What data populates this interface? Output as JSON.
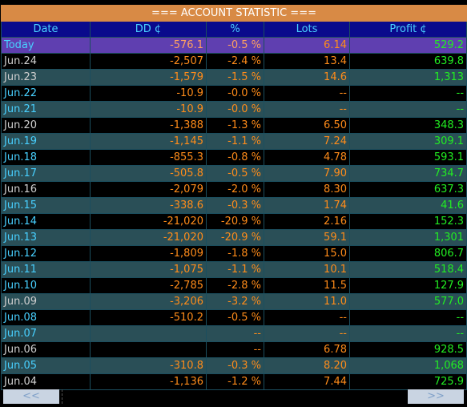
{
  "title": "=== ACCOUNT STATISTIC ===",
  "headers": {
    "date": "Date",
    "dd": "DD ¢",
    "pct": "%",
    "lots": "Lots",
    "profit": "Profit ¢"
  },
  "rows": [
    {
      "date": "Today",
      "dd": "-576.1",
      "pct": "-0.5 %",
      "lots": "6.14",
      "profit": "529.2",
      "style": "today"
    },
    {
      "date": "Jun.24",
      "dd": "-2,507",
      "pct": "-2.4 %",
      "lots": "13.4",
      "profit": "639.8",
      "style": "dark",
      "dateColor": "gray"
    },
    {
      "date": "Jun.23",
      "dd": "-1,579",
      "pct": "-1.5 %",
      "lots": "14.6",
      "profit": "1,313",
      "style": "teal",
      "dateColor": "gray"
    },
    {
      "date": "Jun.22",
      "dd": "-10.9",
      "pct": "-0.0 %",
      "lots": "--",
      "profit": "--",
      "style": "dark",
      "dateColor": "cyan"
    },
    {
      "date": "Jun.21",
      "dd": "-10.9",
      "pct": "-0.0 %",
      "lots": "--",
      "profit": "--",
      "style": "teal",
      "dateColor": "cyan"
    },
    {
      "date": "Jun.20",
      "dd": "-1,388",
      "pct": "-1.3 %",
      "lots": "6.50",
      "profit": "348.3",
      "style": "dark",
      "dateColor": "gray"
    },
    {
      "date": "Jun.19",
      "dd": "-1,145",
      "pct": "-1.1 %",
      "lots": "7.24",
      "profit": "309.1",
      "style": "teal",
      "dateColor": "cyan"
    },
    {
      "date": "Jun.18",
      "dd": "-855.3",
      "pct": "-0.8 %",
      "lots": "4.78",
      "profit": "593.1",
      "style": "dark",
      "dateColor": "cyan"
    },
    {
      "date": "Jun.17",
      "dd": "-505.8",
      "pct": "-0.5 %",
      "lots": "7.90",
      "profit": "734.7",
      "style": "teal",
      "dateColor": "cyan"
    },
    {
      "date": "Jun.16",
      "dd": "-2,079",
      "pct": "-2.0 %",
      "lots": "8.30",
      "profit": "637.3",
      "style": "dark",
      "dateColor": "gray"
    },
    {
      "date": "Jun.15",
      "dd": "-338.6",
      "pct": "-0.3 %",
      "lots": "1.74",
      "profit": "41.6",
      "style": "teal",
      "dateColor": "cyan"
    },
    {
      "date": "Jun.14",
      "dd": "-21,020",
      "pct": "-20.9 %",
      "lots": "2.16",
      "profit": "152.3",
      "style": "dark",
      "dateColor": "cyan"
    },
    {
      "date": "Jun.13",
      "dd": "-21,020",
      "pct": "-20.9 %",
      "lots": "59.1",
      "profit": "1,301",
      "style": "teal",
      "dateColor": "cyan"
    },
    {
      "date": "Jun.12",
      "dd": "-1,809",
      "pct": "-1.8 %",
      "lots": "15.0",
      "profit": "806.7",
      "style": "dark",
      "dateColor": "cyan"
    },
    {
      "date": "Jun.11",
      "dd": "-1,075",
      "pct": "-1.1 %",
      "lots": "10.1",
      "profit": "518.4",
      "style": "teal",
      "dateColor": "cyan"
    },
    {
      "date": "Jun.10",
      "dd": "-2,785",
      "pct": "-2.8 %",
      "lots": "11.5",
      "profit": "127.9",
      "style": "dark",
      "dateColor": "cyan"
    },
    {
      "date": "Jun.09",
      "dd": "-3,206",
      "pct": "-3.2 %",
      "lots": "11.0",
      "profit": "577.0",
      "style": "teal",
      "dateColor": "gray"
    },
    {
      "date": "Jun.08",
      "dd": "-510.2",
      "pct": "-0.5 %",
      "lots": "--",
      "profit": "--",
      "style": "dark",
      "dateColor": "cyan"
    },
    {
      "date": "Jun.07",
      "dd": "",
      "pct": "--",
      "lots": "--",
      "profit": "--",
      "style": "teal",
      "dateColor": "cyan"
    },
    {
      "date": "Jun.06",
      "dd": "",
      "pct": "--",
      "lots": "6.78",
      "profit": "928.5",
      "style": "dark",
      "dateColor": "gray"
    },
    {
      "date": "Jun.05",
      "dd": "-310.8",
      "pct": "-0.3 %",
      "lots": "8.20",
      "profit": "1,068",
      "style": "teal",
      "dateColor": "cyan"
    },
    {
      "date": "Jun.04",
      "dd": "-1,136",
      "pct": "-1.2 %",
      "lots": "7.44",
      "profit": "725.9",
      "style": "dark",
      "dateColor": "gray"
    }
  ],
  "nav": {
    "prev": "<<",
    "next": ">>"
  },
  "colors": {
    "title_bg": "#d88a45",
    "header_bg": "#0a0a8c",
    "today_bg": "#5f3fb0",
    "teal_row": "#2a4f57",
    "dd": "#ff8c1a",
    "profit": "#22ee22",
    "date_cyan": "#48d0ff"
  }
}
